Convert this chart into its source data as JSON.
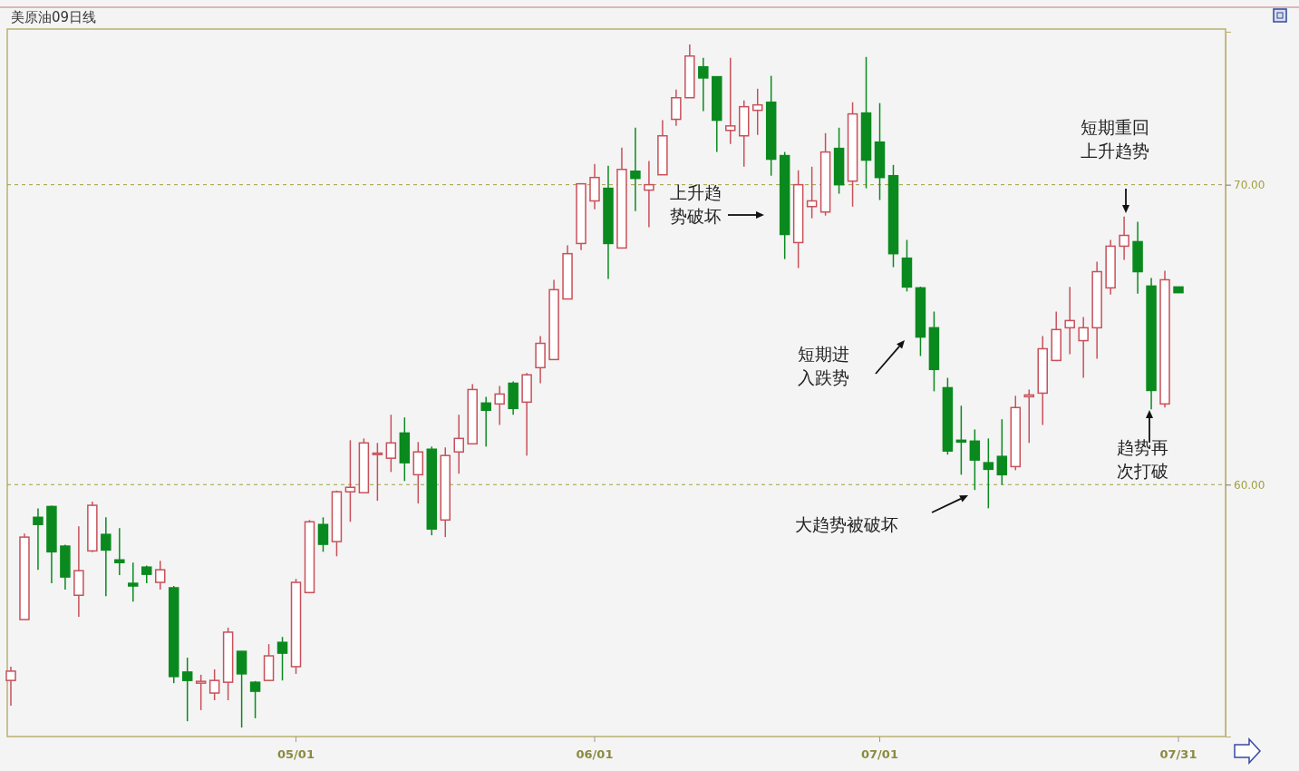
{
  "chart_data": {
    "type": "candlestick",
    "title": "美原油09日线",
    "categories": [
      null,
      null,
      null,
      null,
      null,
      null,
      null,
      null,
      null,
      null,
      null,
      null,
      null,
      null,
      null,
      null,
      null,
      null,
      null,
      null,
      null,
      "05/01",
      null,
      null,
      null,
      null,
      null,
      null,
      null,
      null,
      null,
      null,
      null,
      null,
      null,
      null,
      null,
      null,
      null,
      null,
      null,
      null,
      null,
      "06/01",
      null,
      null,
      null,
      null,
      null,
      null,
      null,
      null,
      null,
      null,
      null,
      null,
      null,
      null,
      null,
      null,
      null,
      null,
      null,
      null,
      "07/01",
      null,
      null,
      null,
      null,
      null,
      null,
      null,
      null,
      null,
      null,
      null,
      null,
      null,
      null,
      null,
      null,
      null,
      null,
      null,
      null,
      null,
      "07/31"
    ],
    "ohlc": [
      [
        53.47,
        53.93,
        52.63,
        53.78
      ],
      [
        55.5,
        58.37,
        55.5,
        58.25
      ],
      [
        58.91,
        59.21,
        57.16,
        58.67
      ],
      [
        59.27,
        59.3,
        56.71,
        57.76
      ],
      [
        57.95,
        58.0,
        56.5,
        56.92
      ],
      [
        56.31,
        58.61,
        55.59,
        57.13
      ],
      [
        57.79,
        59.43,
        57.75,
        59.31
      ],
      [
        58.34,
        58.91,
        56.28,
        57.82
      ],
      [
        57.49,
        58.55,
        56.98,
        57.4
      ],
      [
        56.71,
        57.4,
        56.1,
        56.62
      ],
      [
        57.25,
        57.3,
        56.71,
        57.01
      ],
      [
        56.74,
        57.46,
        56.5,
        57.16
      ],
      [
        56.56,
        56.62,
        53.38,
        53.6
      ],
      [
        53.75,
        54.23,
        52.11,
        53.47
      ],
      [
        53.38,
        53.66,
        52.48,
        53.44
      ],
      [
        53.05,
        53.84,
        52.81,
        53.47
      ],
      [
        53.41,
        55.23,
        52.81,
        55.08
      ],
      [
        54.44,
        54.45,
        51.9,
        53.69
      ],
      [
        53.41,
        53.45,
        52.21,
        53.11
      ],
      [
        53.47,
        54.68,
        53.45,
        54.29
      ],
      [
        54.74,
        54.92,
        53.47,
        54.38
      ],
      [
        53.93,
        56.86,
        53.69,
        56.74
      ],
      [
        56.4,
        58.82,
        56.4,
        58.76
      ],
      [
        58.67,
        58.91,
        57.76,
        58.01
      ],
      [
        58.1,
        59.8,
        57.61,
        59.76
      ],
      [
        59.76,
        61.48,
        58.76,
        59.91
      ],
      [
        59.73,
        61.54,
        59.73,
        61.39
      ],
      [
        61.0,
        61.39,
        59.46,
        61.05
      ],
      [
        60.88,
        62.33,
        60.42,
        61.39
      ],
      [
        61.72,
        62.24,
        60.12,
        60.73
      ],
      [
        60.33,
        61.42,
        59.37,
        61.09
      ],
      [
        61.18,
        61.27,
        58.31,
        58.52
      ],
      [
        58.82,
        61.24,
        58.25,
        60.97
      ],
      [
        61.09,
        62.33,
        60.36,
        61.54
      ],
      [
        61.36,
        63.35,
        61.36,
        63.17
      ],
      [
        62.72,
        62.93,
        61.27,
        62.48
      ],
      [
        62.69,
        63.29,
        61.99,
        63.02
      ],
      [
        63.38,
        63.44,
        62.33,
        62.54
      ],
      [
        62.75,
        63.72,
        60.97,
        63.66
      ],
      [
        63.9,
        64.95,
        63.38,
        64.71
      ],
      [
        64.17,
        66.83,
        64.17,
        66.5
      ],
      [
        66.19,
        67.98,
        66.19,
        67.7
      ],
      [
        68.04,
        70.05,
        67.82,
        70.03
      ],
      [
        69.46,
        70.69,
        69.18,
        70.24
      ],
      [
        69.88,
        70.63,
        66.86,
        68.04
      ],
      [
        67.89,
        71.24,
        67.89,
        70.51
      ],
      [
        70.45,
        71.9,
        69.12,
        70.21
      ],
      [
        69.82,
        70.79,
        68.58,
        70.0
      ],
      [
        70.33,
        72.15,
        70.33,
        71.63
      ],
      [
        72.18,
        73.17,
        71.96,
        72.9
      ],
      [
        72.9,
        74.68,
        72.9,
        74.29
      ],
      [
        73.93,
        74.23,
        72.45,
        73.56
      ],
      [
        73.6,
        73.62,
        71.09,
        72.15
      ],
      [
        71.81,
        74.23,
        71.36,
        71.96
      ],
      [
        71.63,
        72.81,
        70.6,
        72.6
      ],
      [
        72.48,
        73.2,
        71.66,
        72.66
      ],
      [
        72.75,
        73.63,
        70.3,
        70.85
      ],
      [
        70.97,
        71.09,
        67.52,
        68.34
      ],
      [
        68.07,
        70.48,
        67.22,
        70.0
      ],
      [
        69.27,
        70.6,
        68.88,
        69.46
      ],
      [
        69.09,
        71.72,
        68.97,
        71.09
      ],
      [
        71.21,
        71.9,
        69.7,
        70.0
      ],
      [
        70.12,
        72.75,
        69.27,
        72.36
      ],
      [
        72.39,
        74.26,
        69.88,
        70.82
      ],
      [
        71.42,
        72.72,
        69.49,
        70.24
      ],
      [
        70.3,
        70.66,
        67.25,
        67.7
      ],
      [
        67.55,
        68.16,
        66.44,
        66.59
      ],
      [
        66.56,
        66.6,
        64.29,
        64.92
      ],
      [
        65.23,
        65.77,
        63.11,
        63.84
      ],
      [
        63.23,
        63.56,
        61.0,
        61.12
      ],
      [
        61.48,
        62.63,
        60.33,
        61.42
      ],
      [
        61.45,
        61.84,
        59.82,
        60.82
      ],
      [
        60.73,
        61.54,
        59.21,
        60.51
      ],
      [
        60.94,
        62.18,
        60.0,
        60.33
      ],
      [
        60.6,
        62.96,
        60.48,
        62.57
      ],
      [
        62.93,
        63.17,
        61.39,
        62.99
      ],
      [
        63.05,
        64.95,
        61.99,
        64.53
      ],
      [
        64.14,
        65.77,
        64.11,
        65.17
      ],
      [
        65.23,
        66.59,
        64.35,
        65.47
      ],
      [
        64.8,
        65.59,
        63.56,
        65.23
      ],
      [
        65.23,
        67.43,
        64.2,
        67.1
      ],
      [
        66.56,
        68.16,
        66.34,
        67.95
      ],
      [
        67.95,
        68.94,
        67.49,
        68.31
      ],
      [
        68.1,
        68.76,
        66.37,
        67.1
      ],
      [
        66.62,
        66.89,
        62.51,
        63.14
      ],
      [
        62.69,
        67.13,
        62.57,
        66.83
      ],
      [
        66.59,
        66.6,
        66.4,
        66.4
      ]
    ],
    "ylim": [
      51.6,
      75.1
    ],
    "yticks": [
      {
        "value": 60,
        "label": "60.00"
      },
      {
        "value": 70,
        "label": "70.00"
      }
    ],
    "ref_lines": [
      {
        "axis": "y",
        "value": 60,
        "color": "#a0a040",
        "line_style": "dashed"
      },
      {
        "axis": "y",
        "value": 70,
        "color": "#a0a040",
        "line_style": "dashed"
      }
    ],
    "annotations": [
      "上升趋势破坏",
      "短期进入跌势",
      "大趋势被破坏",
      "短期重回上升趋势",
      "趋势再次打破"
    ]
  }
}
